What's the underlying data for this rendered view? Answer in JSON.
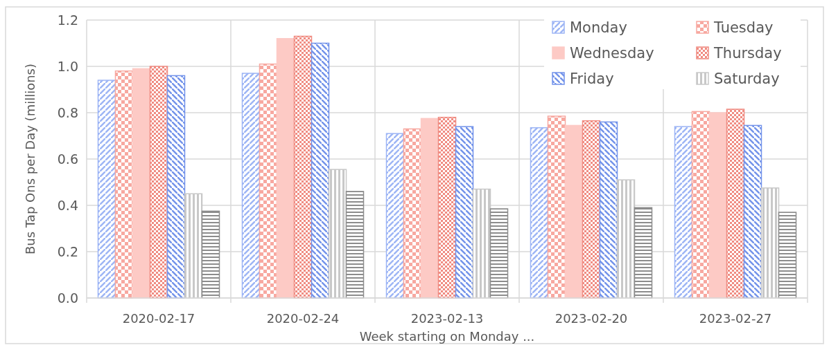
{
  "chart_data": {
    "type": "bar",
    "xlabel": "Week starting on Monday ...",
    "ylabel": "Bus Tap Ons per Day (millions)",
    "categories": [
      "2020-02-17",
      "2020-02-24",
      "2023-02-13",
      "2023-02-20",
      "2023-02-27"
    ],
    "series": [
      {
        "name": "Monday",
        "color": "#9db5f5",
        "values": [
          0.94,
          0.97,
          0.71,
          0.735,
          0.74
        ]
      },
      {
        "name": "Tuesday",
        "color": "#f7a8a0",
        "values": [
          0.98,
          1.01,
          0.73,
          0.785,
          0.805
        ]
      },
      {
        "name": "Wednesday",
        "color": "#fdcac5",
        "values": [
          0.99,
          1.12,
          0.775,
          0.745,
          0.8
        ]
      },
      {
        "name": "Thursday",
        "color": "#f08c82",
        "values": [
          1.0,
          1.13,
          0.78,
          0.765,
          0.815
        ]
      },
      {
        "name": "Friday",
        "color": "#7393ea",
        "values": [
          0.96,
          1.1,
          0.74,
          0.76,
          0.745
        ]
      },
      {
        "name": "Saturday",
        "color": "#c8c8c8",
        "values": [
          0.45,
          0.555,
          0.47,
          0.51,
          0.475
        ]
      },
      {
        "color": "#8c8c8c",
        "values": [
          0.375,
          0.46,
          0.385,
          0.39,
          0.37
        ]
      }
    ],
    "ylim": [
      0,
      1.2
    ],
    "yticks": [
      {
        "value": 0,
        "label": "0.0"
      },
      0.2,
      0.4,
      0.6,
      0.8,
      {
        "value": 1,
        "label": "1.0"
      },
      1.2
    ],
    "grid": true,
    "legend": "top right"
  }
}
